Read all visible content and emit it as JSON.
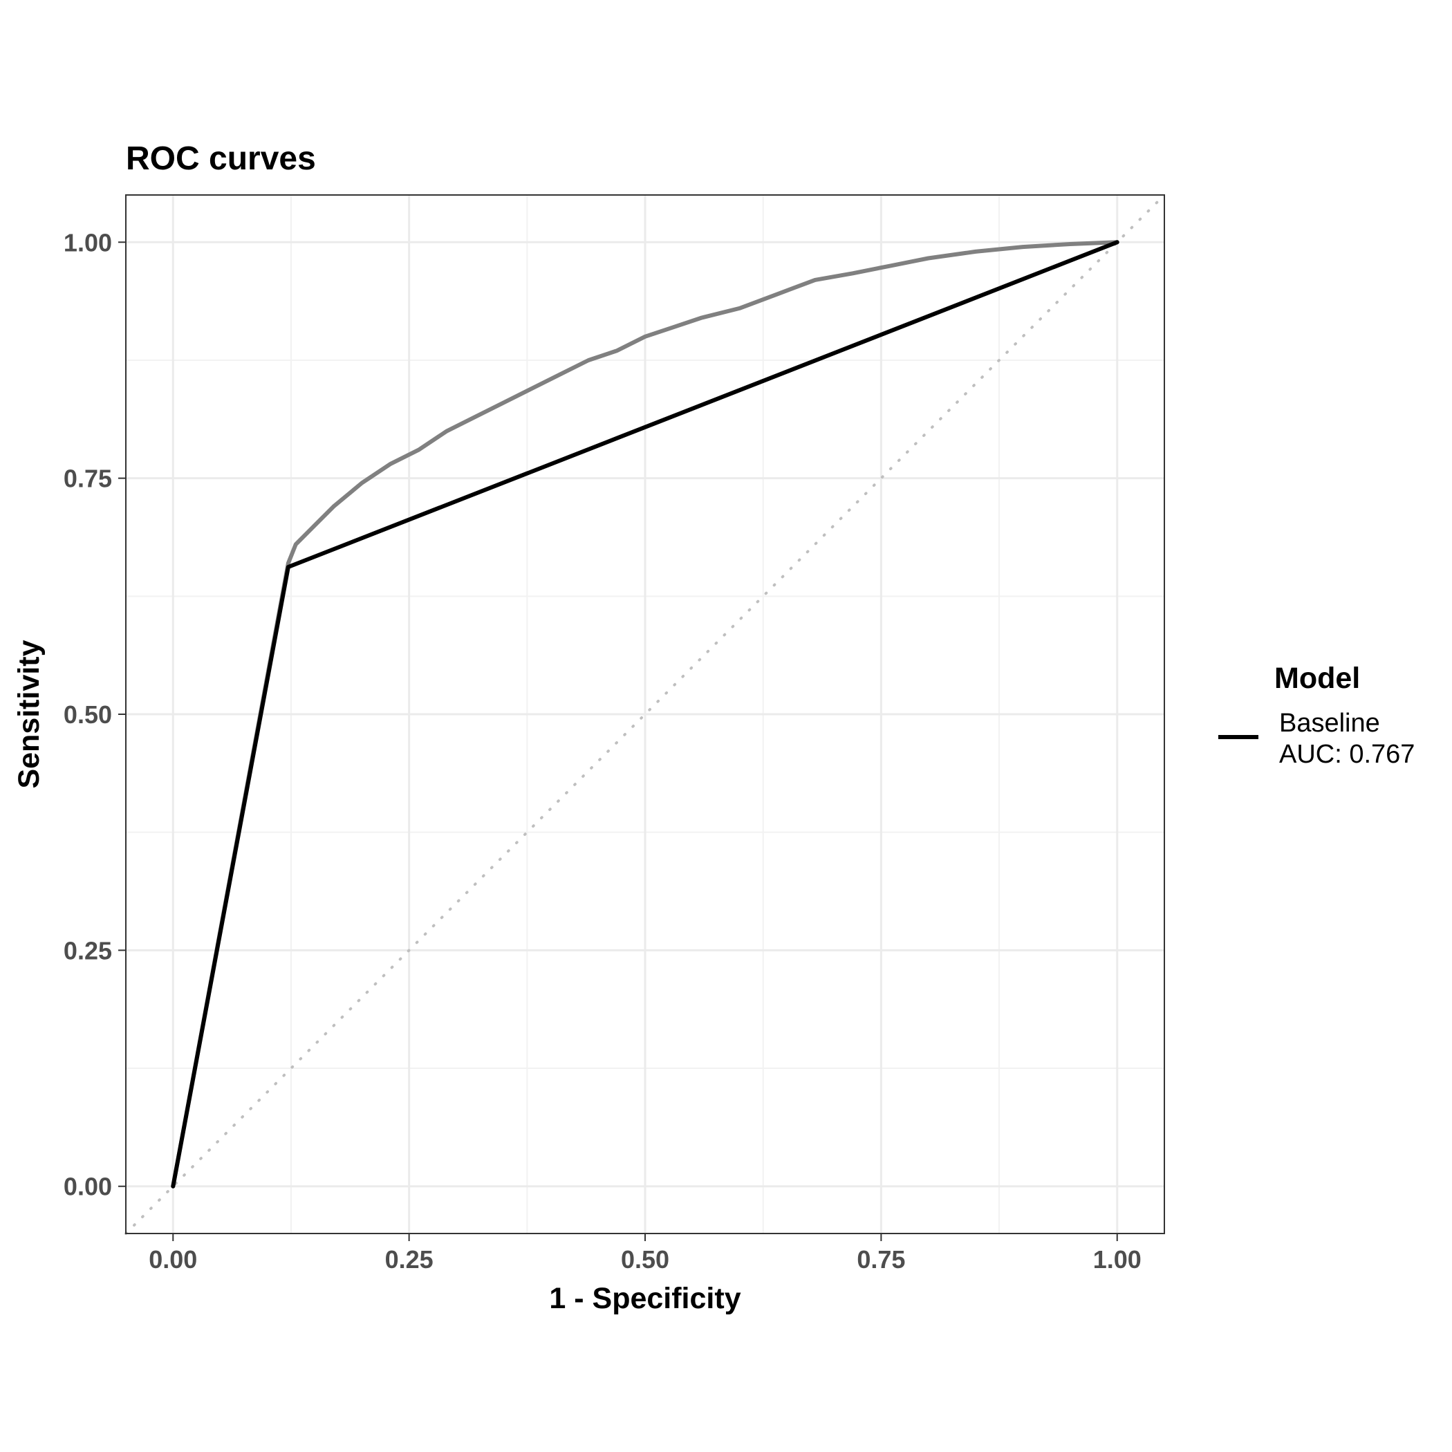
{
  "chart_data": {
    "type": "line",
    "title": "ROC curves",
    "xlabel": "1 - Specificity",
    "ylabel": "Sensitivity",
    "xlim": [
      -0.05,
      1.05
    ],
    "ylim": [
      -0.05,
      1.05
    ],
    "x_ticks": [
      "0.00",
      "0.25",
      "0.50",
      "0.75",
      "1.00"
    ],
    "y_ticks": [
      "0.00",
      "0.25",
      "0.50",
      "0.75",
      "1.00"
    ],
    "tick_values": [
      0,
      0.25,
      0.5,
      0.75,
      1.0
    ],
    "grid": true,
    "legend": {
      "title": "Model",
      "position": "right",
      "entries": [
        {
          "line1": "Baseline",
          "line2": "AUC: 0.767",
          "color": "#000000"
        }
      ]
    },
    "series": [
      {
        "name": "Baseline",
        "color": "#000000",
        "x": [
          0.0,
          0.122,
          1.0
        ],
        "y": [
          0.0,
          0.656,
          1.0
        ]
      },
      {
        "color": "#808080",
        "x": [
          0.0,
          0.122,
          0.13,
          0.15,
          0.17,
          0.2,
          0.23,
          0.26,
          0.29,
          0.32,
          0.35,
          0.38,
          0.41,
          0.44,
          0.47,
          0.5,
          0.53,
          0.56,
          0.6,
          0.64,
          0.68,
          0.72,
          0.76,
          0.8,
          0.85,
          0.9,
          0.95,
          1.0
        ],
        "y": [
          0.0,
          0.66,
          0.68,
          0.7,
          0.72,
          0.745,
          0.765,
          0.78,
          0.8,
          0.815,
          0.83,
          0.845,
          0.86,
          0.875,
          0.885,
          0.9,
          0.91,
          0.92,
          0.93,
          0.945,
          0.96,
          0.967,
          0.975,
          0.983,
          0.99,
          0.995,
          0.998,
          1.0
        ]
      },
      {
        "color": "#bfbfbf",
        "style": "dotted",
        "x": [
          -0.05,
          1.05
        ],
        "y": [
          -0.05,
          1.05
        ]
      }
    ]
  }
}
